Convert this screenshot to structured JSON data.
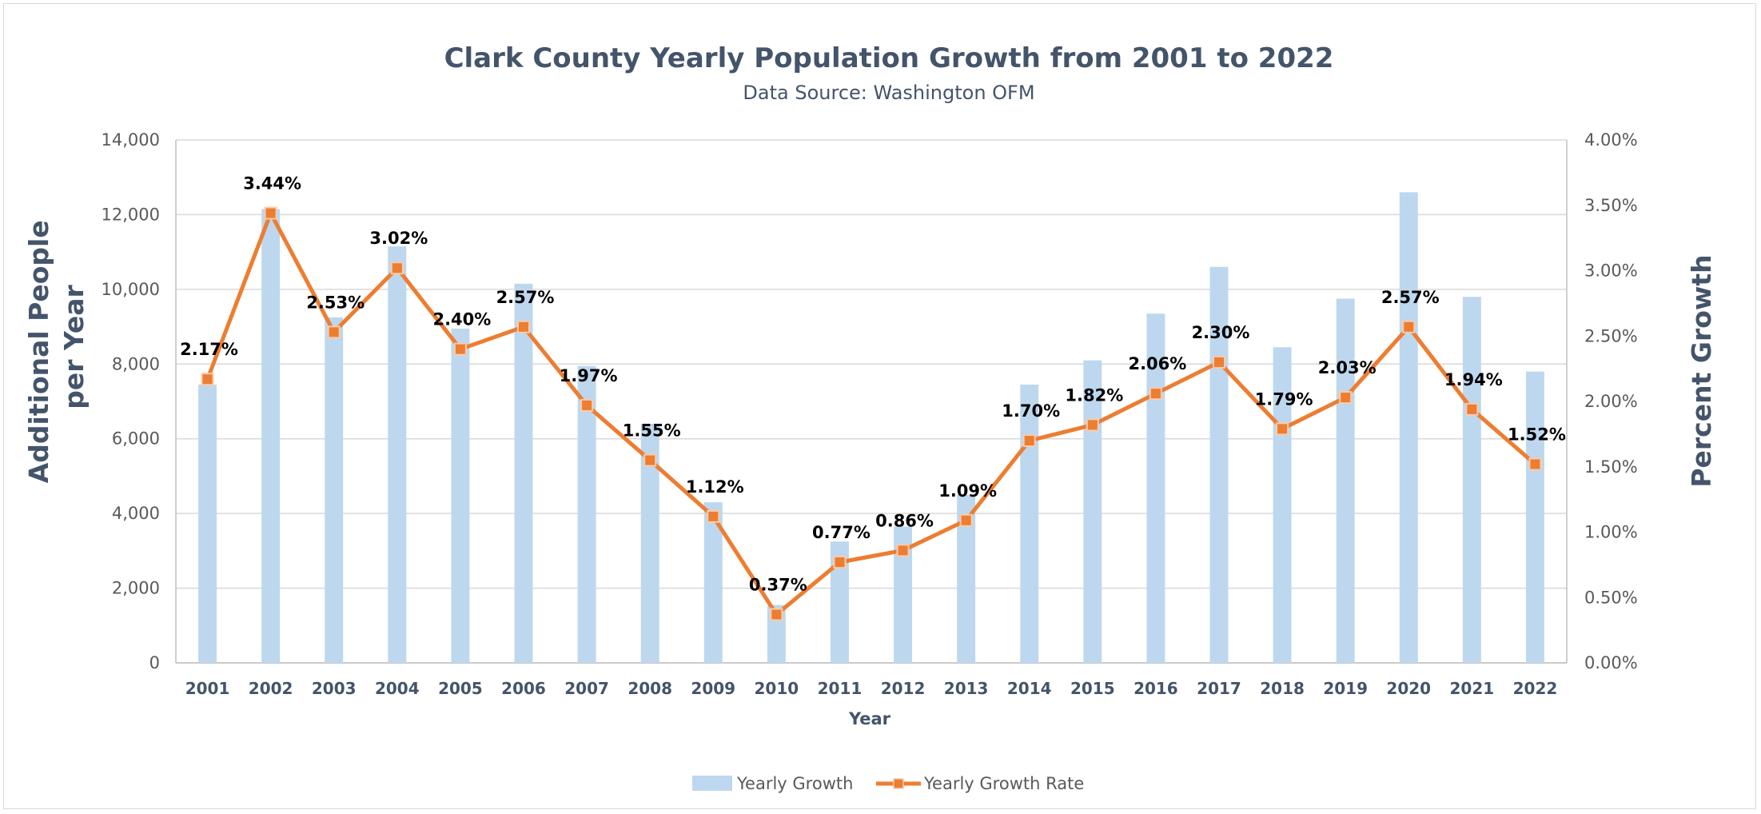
{
  "chart_data": {
    "type": "bar+line",
    "title": "Clark County Yearly Population Growth from 2001 to 2022",
    "subtitle": "Data Source: Washington OFM",
    "xlabel": "Year",
    "ylabel_left": "Additional People per Year",
    "ylabel_left_lines": [
      "Additional People",
      "per Year"
    ],
    "ylabel_right": "Percent Growth",
    "categories": [
      "2001",
      "2002",
      "2003",
      "2004",
      "2005",
      "2006",
      "2007",
      "2008",
      "2009",
      "2010",
      "2011",
      "2012",
      "2013",
      "2014",
      "2015",
      "2016",
      "2017",
      "2018",
      "2019",
      "2020",
      "2021",
      "2022"
    ],
    "series": [
      {
        "name": "Yearly Growth",
        "type": "bar",
        "axis": "left",
        "color": "#bdd7ee",
        "values": [
          7450,
          12150,
          9250,
          11150,
          8950,
          10150,
          7950,
          6400,
          4300,
          1550,
          3250,
          3650,
          4500,
          7450,
          8100,
          9350,
          10600,
          8450,
          9750,
          12600,
          9800,
          7800
        ]
      },
      {
        "name": "Yearly Growth Rate",
        "type": "line",
        "axis": "right",
        "color": "#ed7d31",
        "values": [
          2.17,
          3.44,
          2.53,
          3.02,
          2.4,
          2.57,
          1.97,
          1.55,
          1.12,
          0.37,
          0.77,
          0.86,
          1.09,
          1.7,
          1.82,
          2.06,
          2.3,
          1.79,
          2.03,
          2.57,
          1.94,
          1.52
        ],
        "labels": [
          "2.17%",
          "3.44%",
          "2.53%",
          "3.02%",
          "2.40%",
          "2.57%",
          "1.97%",
          "1.55%",
          "1.12%",
          "0.37%",
          "0.77%",
          "0.86%",
          "1.09%",
          "1.70%",
          "1.82%",
          "2.06%",
          "2.30%",
          "1.79%",
          "2.03%",
          "2.57%",
          "1.94%",
          "1.52%"
        ]
      }
    ],
    "ylim_left": [
      0,
      14000
    ],
    "yticks_left": [
      "0",
      "2,000",
      "4,000",
      "6,000",
      "8,000",
      "10,000",
      "12,000",
      "14,000"
    ],
    "ylim_right": [
      0,
      4
    ],
    "yticks_right": [
      "0.00%",
      "0.50%",
      "1.00%",
      "1.50%",
      "2.00%",
      "2.50%",
      "3.00%",
      "3.50%",
      "4.00%"
    ],
    "grid": true,
    "legend_position": "bottom"
  }
}
